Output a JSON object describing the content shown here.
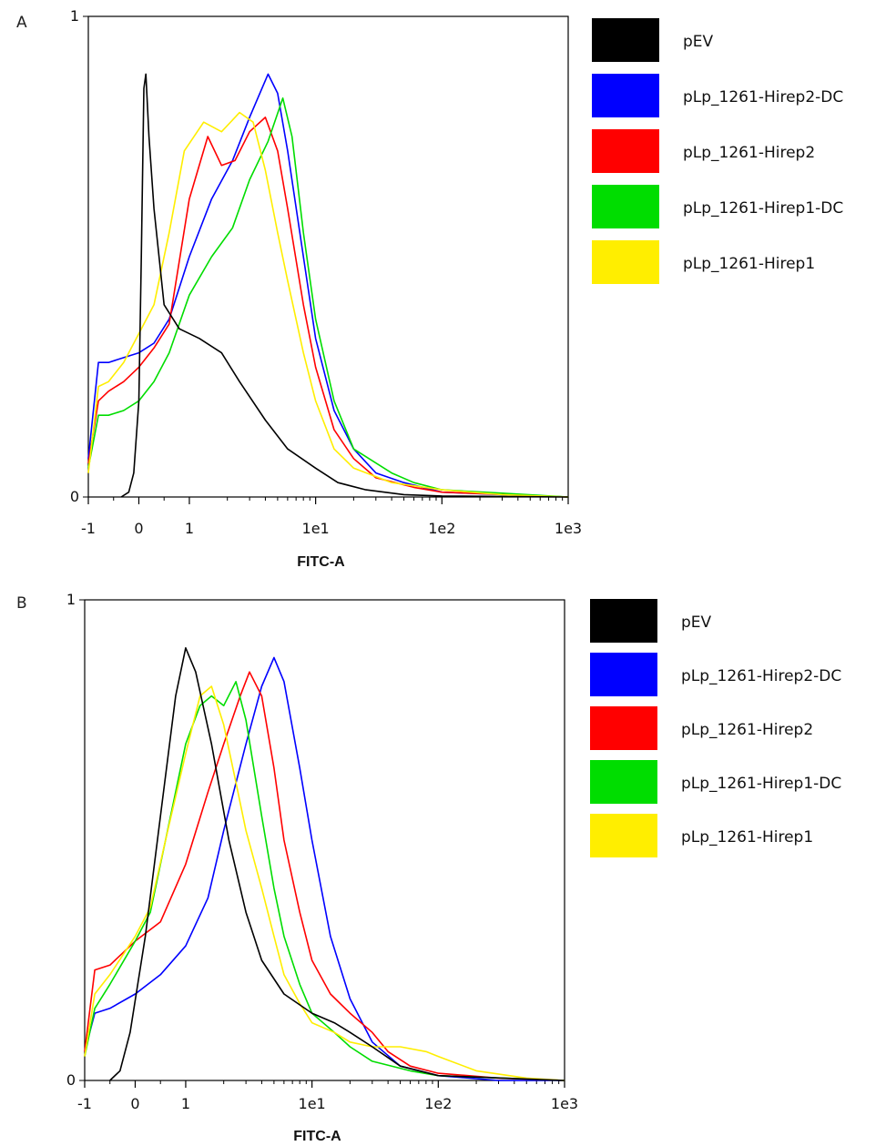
{
  "chart_data": [
    {
      "panel": "A",
      "type": "line",
      "xlabel": "FITC-A",
      "ylabel": "",
      "x_scale": "biexponential",
      "x_ticks": [
        "-1",
        "0",
        "1",
        "1e1",
        "1e2",
        "1e3"
      ],
      "y_ticks": [
        "0",
        "1"
      ],
      "ylim": [
        0,
        1
      ],
      "grid": false,
      "legend_position": "right",
      "series": [
        {
          "name": "pEV",
          "color": "#000000",
          "points": [
            [
              -0.35,
              0
            ],
            [
              -0.2,
              0.01
            ],
            [
              -0.1,
              0.05
            ],
            [
              0,
              0.2
            ],
            [
              0.05,
              0.5
            ],
            [
              0.1,
              0.85
            ],
            [
              0.14,
              0.88
            ],
            [
              0.2,
              0.75
            ],
            [
              0.3,
              0.6
            ],
            [
              0.5,
              0.4
            ],
            [
              0.8,
              0.35
            ],
            [
              1.2,
              0.33
            ],
            [
              1.8,
              0.3
            ],
            [
              2.5,
              0.24
            ],
            [
              4,
              0.16
            ],
            [
              6,
              0.1
            ],
            [
              10,
              0.06
            ],
            [
              15,
              0.03
            ],
            [
              25,
              0.015
            ],
            [
              50,
              0.005
            ],
            [
              100,
              0.002
            ],
            [
              1000,
              0
            ]
          ]
        },
        {
          "name": "pLp_1261-Hirep2-DC",
          "color": "#0000ff",
          "points": [
            [
              -1,
              0.08
            ],
            [
              -0.8,
              0.28
            ],
            [
              -0.6,
              0.28
            ],
            [
              -0.3,
              0.29
            ],
            [
              0,
              0.3
            ],
            [
              0.3,
              0.32
            ],
            [
              0.6,
              0.37
            ],
            [
              1.0,
              0.5
            ],
            [
              1.5,
              0.62
            ],
            [
              2.2,
              0.7
            ],
            [
              3.0,
              0.79
            ],
            [
              4.2,
              0.88
            ],
            [
              5,
              0.84
            ],
            [
              6,
              0.72
            ],
            [
              8,
              0.5
            ],
            [
              10,
              0.33
            ],
            [
              14,
              0.18
            ],
            [
              20,
              0.1
            ],
            [
              30,
              0.05
            ],
            [
              50,
              0.03
            ],
            [
              100,
              0.01
            ],
            [
              300,
              0.005
            ],
            [
              1000,
              0
            ]
          ]
        },
        {
          "name": "pLp_1261-Hirep2",
          "color": "#ff0000",
          "points": [
            [
              -1,
              0.07
            ],
            [
              -0.8,
              0.2
            ],
            [
              -0.6,
              0.22
            ],
            [
              -0.3,
              0.24
            ],
            [
              0,
              0.27
            ],
            [
              0.3,
              0.31
            ],
            [
              0.6,
              0.36
            ],
            [
              1.0,
              0.62
            ],
            [
              1.4,
              0.75
            ],
            [
              1.8,
              0.69
            ],
            [
              2.3,
              0.7
            ],
            [
              3.0,
              0.76
            ],
            [
              4.0,
              0.79
            ],
            [
              5,
              0.72
            ],
            [
              6,
              0.6
            ],
            [
              8,
              0.4
            ],
            [
              10,
              0.27
            ],
            [
              14,
              0.14
            ],
            [
              20,
              0.08
            ],
            [
              30,
              0.04
            ],
            [
              60,
              0.02
            ],
            [
              100,
              0.01
            ],
            [
              1000,
              0
            ]
          ]
        },
        {
          "name": "pLp_1261-Hirep1-DC",
          "color": "#00dd00",
          "points": [
            [
              -1,
              0.06
            ],
            [
              -0.8,
              0.17
            ],
            [
              -0.6,
              0.17
            ],
            [
              -0.3,
              0.18
            ],
            [
              0,
              0.2
            ],
            [
              0.3,
              0.24
            ],
            [
              0.6,
              0.3
            ],
            [
              1.0,
              0.42
            ],
            [
              1.5,
              0.5
            ],
            [
              2.2,
              0.56
            ],
            [
              3.0,
              0.66
            ],
            [
              4.2,
              0.74
            ],
            [
              5.5,
              0.83
            ],
            [
              6.5,
              0.75
            ],
            [
              8,
              0.55
            ],
            [
              10,
              0.37
            ],
            [
              14,
              0.2
            ],
            [
              20,
              0.1
            ],
            [
              40,
              0.05
            ],
            [
              60,
              0.03
            ],
            [
              100,
              0.015
            ],
            [
              300,
              0.008
            ],
            [
              1000,
              0
            ]
          ]
        },
        {
          "name": "pLp_1261-Hirep1",
          "color": "#ffee00",
          "points": [
            [
              -1,
              0.05
            ],
            [
              -0.8,
              0.23
            ],
            [
              -0.6,
              0.24
            ],
            [
              -0.3,
              0.28
            ],
            [
              0,
              0.34
            ],
            [
              0.3,
              0.4
            ],
            [
              0.6,
              0.55
            ],
            [
              0.9,
              0.72
            ],
            [
              1.3,
              0.78
            ],
            [
              1.8,
              0.76
            ],
            [
              2.5,
              0.8
            ],
            [
              3.2,
              0.78
            ],
            [
              4,
              0.68
            ],
            [
              5,
              0.55
            ],
            [
              6,
              0.45
            ],
            [
              8,
              0.3
            ],
            [
              10,
              0.2
            ],
            [
              14,
              0.1
            ],
            [
              20,
              0.06
            ],
            [
              40,
              0.03
            ],
            [
              100,
              0.015
            ],
            [
              300,
              0.005
            ],
            [
              1000,
              0
            ]
          ]
        }
      ]
    },
    {
      "panel": "B",
      "type": "line",
      "xlabel": "FITC-A",
      "ylabel": "",
      "x_scale": "biexponential",
      "x_ticks": [
        "-1",
        "0",
        "1",
        "1e1",
        "1e2",
        "1e3"
      ],
      "y_ticks": [
        "0",
        "1"
      ],
      "ylim": [
        0,
        1
      ],
      "grid": false,
      "legend_position": "right",
      "series": [
        {
          "name": "pEV",
          "color": "#000000",
          "points": [
            [
              -0.5,
              0
            ],
            [
              -0.3,
              0.02
            ],
            [
              -0.1,
              0.1
            ],
            [
              0.2,
              0.3
            ],
            [
              0.5,
              0.55
            ],
            [
              0.8,
              0.8
            ],
            [
              1.0,
              0.9
            ],
            [
              1.2,
              0.85
            ],
            [
              1.6,
              0.7
            ],
            [
              2.2,
              0.5
            ],
            [
              3,
              0.35
            ],
            [
              4,
              0.25
            ],
            [
              6,
              0.18
            ],
            [
              10,
              0.14
            ],
            [
              15,
              0.12
            ],
            [
              20,
              0.1
            ],
            [
              30,
              0.07
            ],
            [
              50,
              0.03
            ],
            [
              100,
              0.01
            ],
            [
              1000,
              0
            ]
          ]
        },
        {
          "name": "pLp_1261-Hirep2-DC",
          "color": "#0000ff",
          "points": [
            [
              -1,
              0.06
            ],
            [
              -0.8,
              0.14
            ],
            [
              -0.5,
              0.15
            ],
            [
              0,
              0.18
            ],
            [
              0.5,
              0.22
            ],
            [
              1,
              0.28
            ],
            [
              1.5,
              0.38
            ],
            [
              2,
              0.52
            ],
            [
              3,
              0.7
            ],
            [
              4,
              0.82
            ],
            [
              5,
              0.88
            ],
            [
              6,
              0.83
            ],
            [
              8,
              0.65
            ],
            [
              10,
              0.5
            ],
            [
              14,
              0.3
            ],
            [
              20,
              0.17
            ],
            [
              30,
              0.08
            ],
            [
              50,
              0.03
            ],
            [
              100,
              0.01
            ],
            [
              300,
              0
            ],
            [
              1000,
              0
            ]
          ]
        },
        {
          "name": "pLp_1261-Hirep2",
          "color": "#ff0000",
          "points": [
            [
              -1,
              0.06
            ],
            [
              -0.8,
              0.23
            ],
            [
              -0.5,
              0.24
            ],
            [
              0,
              0.29
            ],
            [
              0.5,
              0.33
            ],
            [
              1,
              0.45
            ],
            [
              1.5,
              0.6
            ],
            [
              2,
              0.7
            ],
            [
              2.7,
              0.8
            ],
            [
              3.2,
              0.85
            ],
            [
              4,
              0.8
            ],
            [
              5,
              0.65
            ],
            [
              6,
              0.5
            ],
            [
              8,
              0.35
            ],
            [
              10,
              0.25
            ],
            [
              14,
              0.18
            ],
            [
              20,
              0.14
            ],
            [
              30,
              0.1
            ],
            [
              40,
              0.06
            ],
            [
              60,
              0.03
            ],
            [
              100,
              0.015
            ],
            [
              300,
              0.005
            ],
            [
              1000,
              0
            ]
          ]
        },
        {
          "name": "pLp_1261-Hirep1-DC",
          "color": "#00dd00",
          "points": [
            [
              -1,
              0.05
            ],
            [
              -0.8,
              0.15
            ],
            [
              -0.5,
              0.2
            ],
            [
              0,
              0.29
            ],
            [
              0.3,
              0.35
            ],
            [
              0.6,
              0.5
            ],
            [
              1,
              0.7
            ],
            [
              1.3,
              0.78
            ],
            [
              1.6,
              0.8
            ],
            [
              2,
              0.78
            ],
            [
              2.5,
              0.83
            ],
            [
              3,
              0.75
            ],
            [
              4,
              0.55
            ],
            [
              5,
              0.4
            ],
            [
              6,
              0.3
            ],
            [
              8,
              0.2
            ],
            [
              10,
              0.14
            ],
            [
              15,
              0.1
            ],
            [
              20,
              0.07
            ],
            [
              30,
              0.04
            ],
            [
              60,
              0.02
            ],
            [
              100,
              0.01
            ],
            [
              1000,
              0
            ]
          ]
        },
        {
          "name": "pLp_1261-Hirep1",
          "color": "#ffee00",
          "points": [
            [
              -1,
              0.05
            ],
            [
              -0.8,
              0.18
            ],
            [
              -0.5,
              0.22
            ],
            [
              0,
              0.3
            ],
            [
              0.3,
              0.36
            ],
            [
              0.6,
              0.5
            ],
            [
              1,
              0.68
            ],
            [
              1.3,
              0.8
            ],
            [
              1.6,
              0.82
            ],
            [
              2,
              0.74
            ],
            [
              2.5,
              0.62
            ],
            [
              3,
              0.52
            ],
            [
              4,
              0.4
            ],
            [
              5,
              0.3
            ],
            [
              6,
              0.22
            ],
            [
              8,
              0.16
            ],
            [
              10,
              0.12
            ],
            [
              15,
              0.1
            ],
            [
              20,
              0.08
            ],
            [
              30,
              0.07
            ],
            [
              50,
              0.07
            ],
            [
              80,
              0.06
            ],
            [
              100,
              0.05
            ],
            [
              200,
              0.02
            ],
            [
              500,
              0.005
            ],
            [
              1000,
              0
            ]
          ]
        }
      ]
    }
  ]
}
